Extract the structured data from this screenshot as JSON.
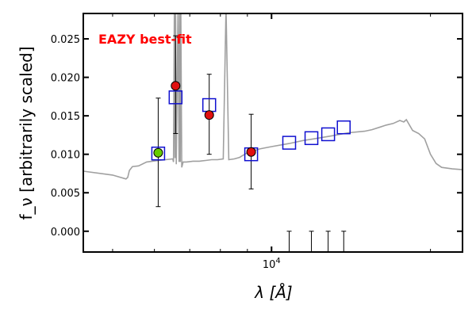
{
  "chart_data": {
    "type": "scatter",
    "title": "",
    "annotation": "EAZY best-fit",
    "xlabel": "λ [Å]",
    "ylabel": "f_ν [arbitrarily scaled]",
    "xscale": "log",
    "xlim": [
      4400,
      23000
    ],
    "ylim": [
      -0.0027,
      0.0283
    ],
    "yticks": [
      0.0,
      0.005,
      0.01,
      0.015,
      0.02,
      0.025
    ],
    "ytick_labels": [
      "0.000",
      "0.005",
      "0.010",
      "0.015",
      "0.020",
      "0.025"
    ],
    "xticks": [
      10000
    ],
    "xtick_labels": [
      "10^4"
    ],
    "grid": false,
    "colors": {
      "model": "#a0a0a0",
      "model_photometry": "#1010d0",
      "detection": "#e01010",
      "detection_highlight": "#66cc00",
      "annotation": "#ff0000",
      "axes": "#000000"
    },
    "series": [
      {
        "kind": "model_spectrum",
        "x": [
          4400,
          5000,
          5300,
          5340,
          5380,
          5450,
          5600,
          5800,
          5950,
          6100,
          6300,
          6500,
          6520,
          6545,
          6563,
          6580,
          6600,
          6650,
          6680,
          6700,
          6716,
          6731,
          6760,
          6800,
          6900,
          7100,
          7300,
          7500,
          7700,
          7900,
          8100,
          8200,
          8300,
          8500,
          8700,
          8800,
          8900,
          9000,
          9300,
          9500,
          10000,
          10800,
          11500,
          12000,
          13000,
          14000,
          15000,
          15500,
          16000,
          16500,
          17000,
          17500,
          17800,
          18000,
          18500,
          19000,
          19500,
          20000,
          20500,
          21000,
          22000,
          23000
        ],
        "y": [
          0.0078,
          0.0073,
          0.0068,
          0.007,
          0.0079,
          0.0084,
          0.0085,
          0.009,
          0.0091,
          0.0092,
          0.0093,
          0.0094,
          0.009,
          0.029,
          0.0095,
          0.029,
          0.0087,
          0.029,
          0.009,
          0.029,
          0.009,
          0.029,
          0.0083,
          0.009,
          0.009,
          0.0091,
          0.0091,
          0.0092,
          0.0093,
          0.0093,
          0.0094,
          0.029,
          0.0093,
          0.0094,
          0.0096,
          0.0098,
          0.01,
          0.0102,
          0.0105,
          0.0107,
          0.011,
          0.0114,
          0.0118,
          0.012,
          0.0124,
          0.0128,
          0.013,
          0.0132,
          0.0135,
          0.0138,
          0.014,
          0.0144,
          0.0142,
          0.0145,
          0.0131,
          0.0127,
          0.012,
          0.01,
          0.0088,
          0.0083,
          0.0081,
          0.008
        ]
      },
      {
        "kind": "model_photometry",
        "marker": "open_square",
        "x": [
          6100,
          6580,
          7620,
          9150,
          10800,
          11900,
          12800,
          13700
        ],
        "y": [
          0.0101,
          0.0174,
          0.0164,
          0.01,
          0.0115,
          0.0121,
          0.0126,
          0.0135
        ]
      },
      {
        "kind": "observed_photometry",
        "marker": "filled_circle",
        "x": [
          6100,
          6580,
          7620,
          9150
        ],
        "y": [
          0.0102,
          0.0189,
          0.0151,
          0.0103
        ],
        "yerr_low": [
          0.0032,
          0.0127,
          0.01,
          0.0055
        ],
        "yerr_high": [
          0.0173,
          0.0254,
          0.0204,
          0.0152
        ],
        "highlight": [
          true,
          false,
          false,
          false
        ]
      },
      {
        "kind": "upper_limits",
        "marker": "downward_tick",
        "x": [
          10800,
          11900,
          12800,
          13700
        ],
        "y": [
          0.0,
          0.0,
          0.0,
          0.0
        ]
      }
    ]
  }
}
